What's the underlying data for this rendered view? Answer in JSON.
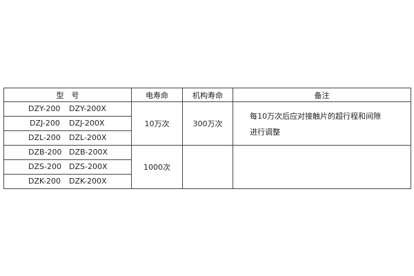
{
  "table": {
    "headers": [
      "型　号",
      "电寿命",
      "机构寿命",
      "备注"
    ],
    "rows": [
      {
        "model": "DZY-200",
        "model_x": "DZY-200X"
      },
      {
        "model": "DZJ-200",
        "model_x": "DZJ-200X"
      },
      {
        "model": "DZL-200",
        "model_x": "DZL-200X"
      },
      {
        "model": "DZB-200",
        "model_x": "DZB-200X"
      },
      {
        "model": "DZS-200",
        "model_x": "DZS-200X"
      },
      {
        "model": "DZK-200",
        "model_x": "DZK-200X"
      }
    ],
    "groups": [
      {
        "electrical_life": "10万次",
        "mechanical_life": "300万次",
        "note_lines": [
          "每10万次后应对接触片的超行程和间隙",
          "进行调整"
        ]
      },
      {
        "electrical_life": "1000次",
        "mechanical_life": "",
        "note_lines": []
      }
    ]
  }
}
